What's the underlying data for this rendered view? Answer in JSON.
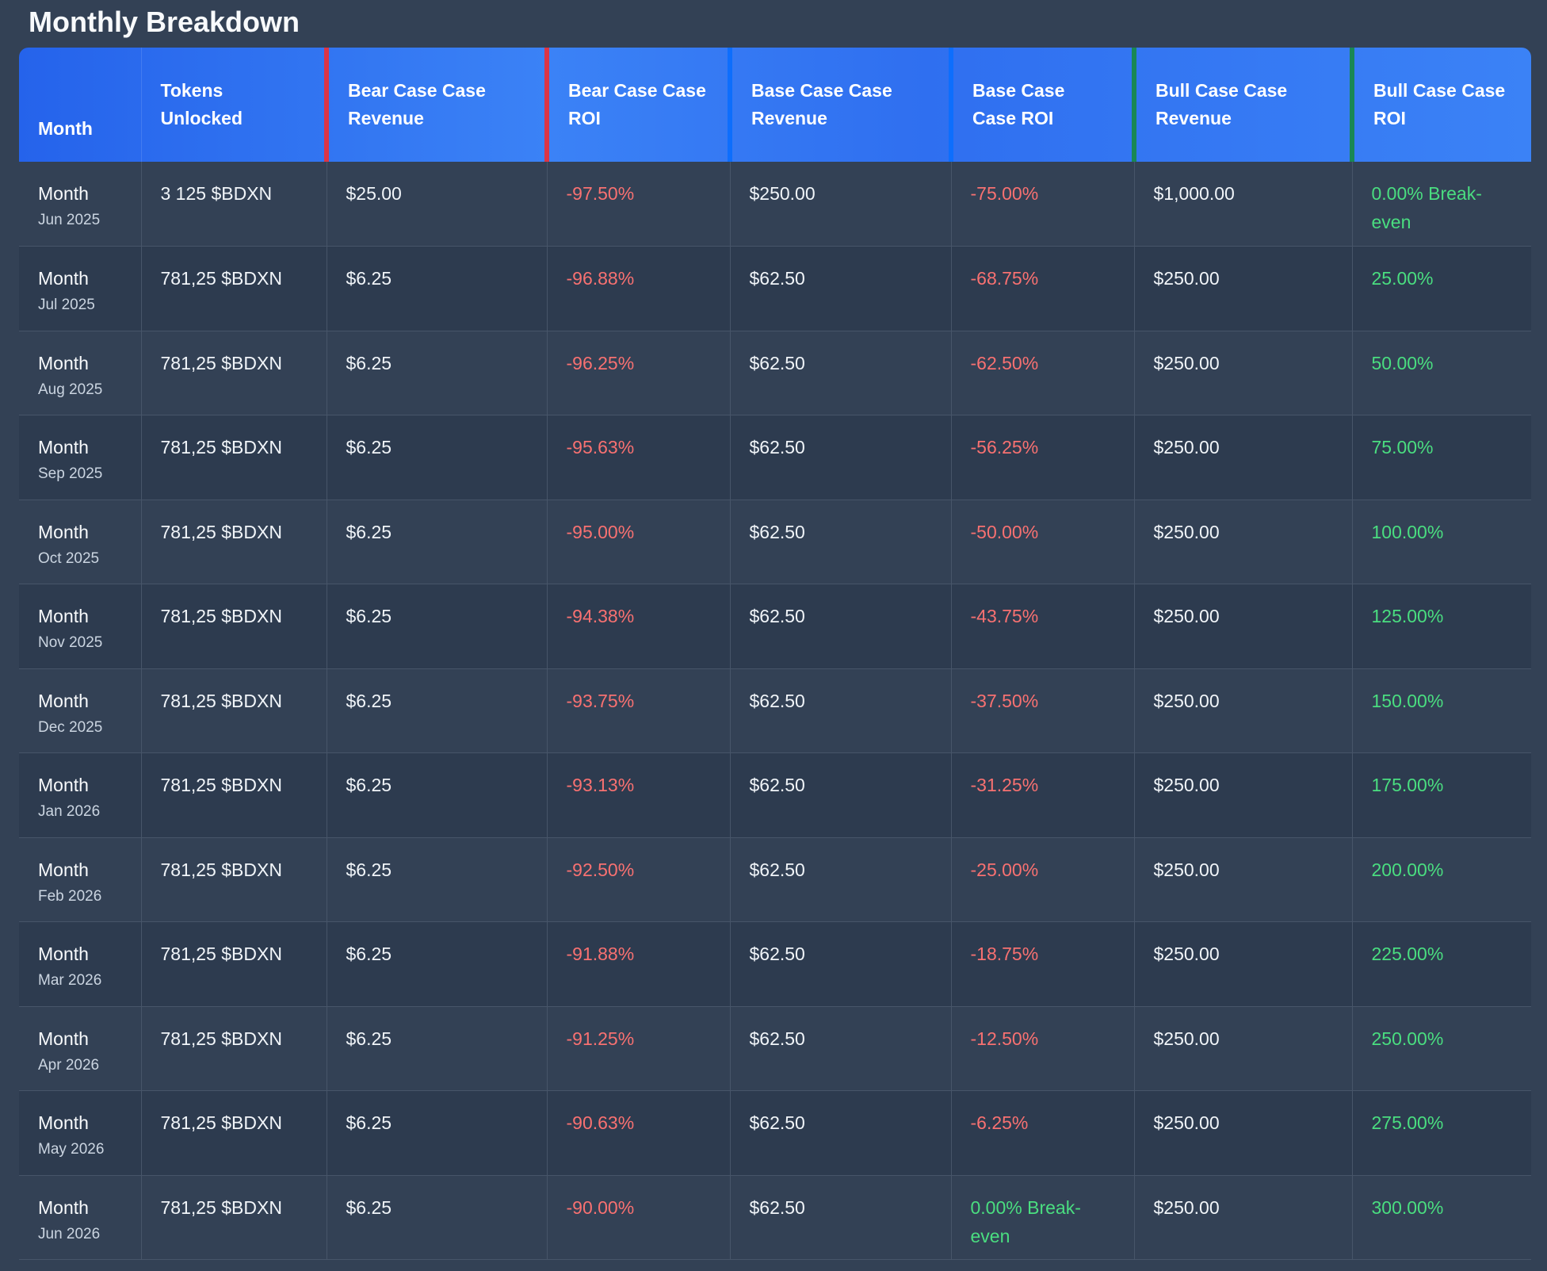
{
  "title": "Monthly Breakdown",
  "colors": {
    "header_gradient_start": "#2563eb",
    "header_gradient_end": "#3b82f6",
    "bear_accent": "#dc3545",
    "base_accent": "#0d6efd",
    "bull_accent": "#198754",
    "negative": "#f87171",
    "positive": "#4ade80"
  },
  "headers": {
    "month": "Month",
    "tokens": "Tokens Unlocked",
    "bear_revenue": "Bear Case Case Revenue",
    "bear_roi": "Bear Case Case ROI",
    "base_revenue": "Base Case Case Revenue",
    "base_roi": "Base Case Case ROI",
    "bull_revenue": "Bull Case Case Revenue",
    "bull_roi": "Bull Case Case ROI"
  },
  "rows": [
    {
      "label": "Month",
      "date": "Jun 2025",
      "tokens": "3 125 $BDXN",
      "bear_revenue": "$25.00",
      "bear_roi": "-97.50%",
      "bear_roi_sign": "neg",
      "base_revenue": "$250.00",
      "base_roi": "-75.00%",
      "base_roi_sign": "neg",
      "bull_revenue": "$1,000.00",
      "bull_roi": "0.00% Break-even",
      "bull_roi_sign": "pos"
    },
    {
      "label": "Month",
      "date": "Jul 2025",
      "tokens": "781,25 $BDXN",
      "bear_revenue": "$6.25",
      "bear_roi": "-96.88%",
      "bear_roi_sign": "neg",
      "base_revenue": "$62.50",
      "base_roi": "-68.75%",
      "base_roi_sign": "neg",
      "bull_revenue": "$250.00",
      "bull_roi": "25.00%",
      "bull_roi_sign": "pos"
    },
    {
      "label": "Month",
      "date": "Aug 2025",
      "tokens": "781,25 $BDXN",
      "bear_revenue": "$6.25",
      "bear_roi": "-96.25%",
      "bear_roi_sign": "neg",
      "base_revenue": "$62.50",
      "base_roi": "-62.50%",
      "base_roi_sign": "neg",
      "bull_revenue": "$250.00",
      "bull_roi": "50.00%",
      "bull_roi_sign": "pos"
    },
    {
      "label": "Month",
      "date": "Sep 2025",
      "tokens": "781,25 $BDXN",
      "bear_revenue": "$6.25",
      "bear_roi": "-95.63%",
      "bear_roi_sign": "neg",
      "base_revenue": "$62.50",
      "base_roi": "-56.25%",
      "base_roi_sign": "neg",
      "bull_revenue": "$250.00",
      "bull_roi": "75.00%",
      "bull_roi_sign": "pos"
    },
    {
      "label": "Month",
      "date": "Oct 2025",
      "tokens": "781,25 $BDXN",
      "bear_revenue": "$6.25",
      "bear_roi": "-95.00%",
      "bear_roi_sign": "neg",
      "base_revenue": "$62.50",
      "base_roi": "-50.00%",
      "base_roi_sign": "neg",
      "bull_revenue": "$250.00",
      "bull_roi": "100.00%",
      "bull_roi_sign": "pos"
    },
    {
      "label": "Month",
      "date": "Nov 2025",
      "tokens": "781,25 $BDXN",
      "bear_revenue": "$6.25",
      "bear_roi": "-94.38%",
      "bear_roi_sign": "neg",
      "base_revenue": "$62.50",
      "base_roi": "-43.75%",
      "base_roi_sign": "neg",
      "bull_revenue": "$250.00",
      "bull_roi": "125.00%",
      "bull_roi_sign": "pos"
    },
    {
      "label": "Month",
      "date": "Dec 2025",
      "tokens": "781,25 $BDXN",
      "bear_revenue": "$6.25",
      "bear_roi": "-93.75%",
      "bear_roi_sign": "neg",
      "base_revenue": "$62.50",
      "base_roi": "-37.50%",
      "base_roi_sign": "neg",
      "bull_revenue": "$250.00",
      "bull_roi": "150.00%",
      "bull_roi_sign": "pos"
    },
    {
      "label": "Month",
      "date": "Jan 2026",
      "tokens": "781,25 $BDXN",
      "bear_revenue": "$6.25",
      "bear_roi": "-93.13%",
      "bear_roi_sign": "neg",
      "base_revenue": "$62.50",
      "base_roi": "-31.25%",
      "base_roi_sign": "neg",
      "bull_revenue": "$250.00",
      "bull_roi": "175.00%",
      "bull_roi_sign": "pos"
    },
    {
      "label": "Month",
      "date": "Feb 2026",
      "tokens": "781,25 $BDXN",
      "bear_revenue": "$6.25",
      "bear_roi": "-92.50%",
      "bear_roi_sign": "neg",
      "base_revenue": "$62.50",
      "base_roi": "-25.00%",
      "base_roi_sign": "neg",
      "bull_revenue": "$250.00",
      "bull_roi": "200.00%",
      "bull_roi_sign": "pos"
    },
    {
      "label": "Month",
      "date": "Mar 2026",
      "tokens": "781,25 $BDXN",
      "bear_revenue": "$6.25",
      "bear_roi": "-91.88%",
      "bear_roi_sign": "neg",
      "base_revenue": "$62.50",
      "base_roi": "-18.75%",
      "base_roi_sign": "neg",
      "bull_revenue": "$250.00",
      "bull_roi": "225.00%",
      "bull_roi_sign": "pos"
    },
    {
      "label": "Month",
      "date": "Apr 2026",
      "tokens": "781,25 $BDXN",
      "bear_revenue": "$6.25",
      "bear_roi": "-91.25%",
      "bear_roi_sign": "neg",
      "base_revenue": "$62.50",
      "base_roi": "-12.50%",
      "base_roi_sign": "neg",
      "bull_revenue": "$250.00",
      "bull_roi": "250.00%",
      "bull_roi_sign": "pos"
    },
    {
      "label": "Month",
      "date": "May 2026",
      "tokens": "781,25 $BDXN",
      "bear_revenue": "$6.25",
      "bear_roi": "-90.63%",
      "bear_roi_sign": "neg",
      "base_revenue": "$62.50",
      "base_roi": "-6.25%",
      "base_roi_sign": "neg",
      "bull_revenue": "$250.00",
      "bull_roi": "275.00%",
      "bull_roi_sign": "pos"
    },
    {
      "label": "Month",
      "date": "Jun 2026",
      "tokens": "781,25 $BDXN",
      "bear_revenue": "$6.25",
      "bear_roi": "-90.00%",
      "bear_roi_sign": "neg",
      "base_revenue": "$62.50",
      "base_roi": "0.00% Break-even",
      "base_roi_sign": "pos",
      "bull_revenue": "$250.00",
      "bull_roi": "300.00%",
      "bull_roi_sign": "pos"
    }
  ]
}
